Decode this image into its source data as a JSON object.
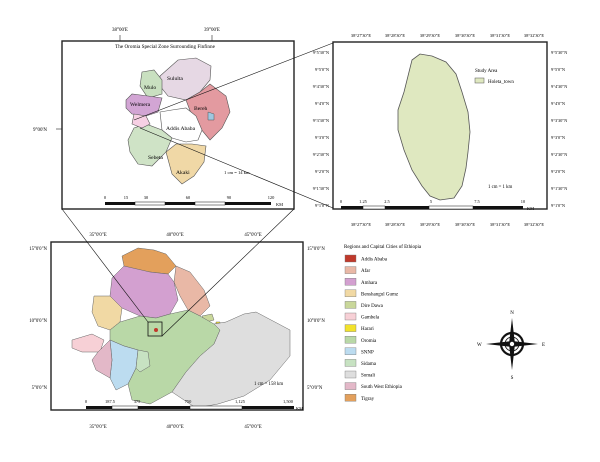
{
  "top_left_map": {
    "title": "The Oromia Special Zone Surrounding Finfinne",
    "lon_labels": [
      "38°00'E",
      "39°00'E"
    ],
    "lat_label": "9°00'N",
    "districts": [
      "Sululta",
      "Mulo",
      "Welmera",
      "Bereh",
      "Addis Ababa",
      "Sebeta",
      "Akaki"
    ],
    "scale_note": "1 cm = 14 km",
    "scale_ticks": [
      "0",
      "15",
      "30",
      "60",
      "90",
      "120"
    ],
    "scale_unit": "KM"
  },
  "study_area_map": {
    "lon_labels": [
      "38°27'30\"E",
      "38°28'30\"E",
      "38°29'30\"E",
      "38°30'30\"E",
      "38°31'30\"E",
      "38°32'30\"E"
    ],
    "lat_labels": [
      "9°5'30\"N",
      "9°5'0\"N",
      "9°4'30\"N",
      "9°4'0\"N",
      "9°3'30\"N",
      "9°3'0\"N",
      "9°2'30\"N",
      "9°2'0\"N",
      "9°1'30\"N",
      "9°1'0\"N"
    ],
    "legend_title": "Study Area",
    "legend_item": "Holeta_town",
    "scale_note": "1 cm = 1 km",
    "scale_ticks": [
      "0",
      "1.25",
      "2.5",
      "5",
      "7.5",
      "10"
    ],
    "scale_unit": "KM"
  },
  "ethiopia_map": {
    "lon_labels": [
      "35°0'0\"E",
      "40°0'0\"E",
      "45°0'0\"E"
    ],
    "lat_labels": [
      "15°0'0\"N",
      "10°0'0\"N",
      "5°0'0\"N"
    ],
    "scale_note": "1 cm = 158 km",
    "scale_ticks": [
      "0",
      "187.5",
      "375",
      "750",
      "1,125",
      "1,500"
    ],
    "scale_unit": "KM"
  },
  "legend": {
    "title": "Regions and Capital Cities of Ethiopia",
    "items": [
      {
        "label": "Addis Ababa",
        "color": "#c0392b"
      },
      {
        "label": "Afar",
        "color": "#e9b8a6"
      },
      {
        "label": "Amhara",
        "color": "#d3a0d0"
      },
      {
        "label": "Benshangul Gumz",
        "color": "#f1d9a4"
      },
      {
        "label": "Dire Dawa",
        "color": "#c9d79a"
      },
      {
        "label": "Gambela",
        "color": "#f7d0d6"
      },
      {
        "label": "Harari",
        "color": "#f2e22b"
      },
      {
        "label": "Oromia",
        "color": "#b9d8a7"
      },
      {
        "label": "SNNP",
        "color": "#bcdcf0"
      },
      {
        "label": "Sidama",
        "color": "#c7e2c2"
      },
      {
        "label": "Somali",
        "color": "#dedede"
      },
      {
        "label": "South West Ethiopia",
        "color": "#e3b8c8"
      },
      {
        "label": "Tigray",
        "color": "#e3a05c"
      }
    ]
  },
  "compass": {
    "n": "N",
    "s": "S",
    "e": "E",
    "w": "W"
  }
}
